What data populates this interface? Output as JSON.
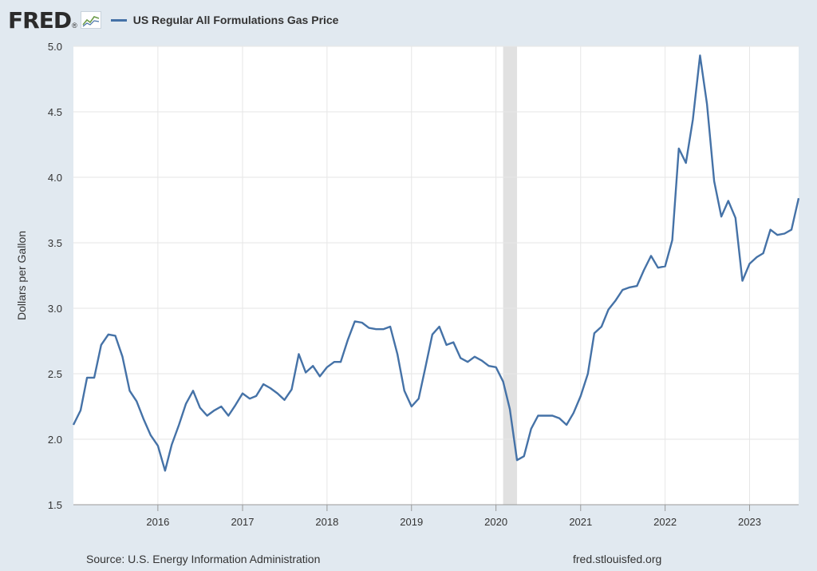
{
  "header": {
    "logo_text": "FRED",
    "logo_reg": "®",
    "legend_label": "US Regular All Formulations Gas Price"
  },
  "footer": {
    "source": "Source: U.S. Energy Information Administration",
    "site": "fred.stlouisfed.org"
  },
  "colors": {
    "line": "#4572a7",
    "recession": "#e1e1e1",
    "background": "#e1e9f0"
  },
  "chart_data": {
    "type": "line",
    "title": "",
    "xlabel": "",
    "ylabel": "Dollars per Gallon",
    "ylim": [
      1.5,
      5.0
    ],
    "xlim": [
      "2015-01-01",
      "2023-08-01"
    ],
    "grid": true,
    "legend": "top-left",
    "yticks": [
      1.5,
      2.0,
      2.5,
      3.0,
      3.5,
      4.0,
      4.5,
      5.0
    ],
    "ytick_labels": [
      "1.5",
      "2.0",
      "2.5",
      "3.0",
      "3.5",
      "4.0",
      "4.5",
      "5.0"
    ],
    "xticks": [
      "2016-01-01",
      "2017-01-01",
      "2018-01-01",
      "2019-01-01",
      "2020-01-01",
      "2021-01-01",
      "2022-01-01",
      "2023-01-01"
    ],
    "xtick_labels": [
      "2016",
      "2017",
      "2018",
      "2019",
      "2020",
      "2021",
      "2022",
      "2023"
    ],
    "shaded_periods": [
      {
        "start": "2020-02-01",
        "end": "2020-04-01",
        "label": "recession"
      }
    ],
    "series": [
      {
        "name": "US Regular All Formulations Gas Price",
        "x": [
          "2015-01-01",
          "2015-02-01",
          "2015-03-01",
          "2015-04-01",
          "2015-05-01",
          "2015-06-01",
          "2015-07-01",
          "2015-08-01",
          "2015-09-01",
          "2015-10-01",
          "2015-11-01",
          "2015-12-01",
          "2016-01-01",
          "2016-02-01",
          "2016-03-01",
          "2016-04-01",
          "2016-05-01",
          "2016-06-01",
          "2016-07-01",
          "2016-08-01",
          "2016-09-01",
          "2016-10-01",
          "2016-11-01",
          "2016-12-01",
          "2017-01-01",
          "2017-02-01",
          "2017-03-01",
          "2017-04-01",
          "2017-05-01",
          "2017-06-01",
          "2017-07-01",
          "2017-08-01",
          "2017-09-01",
          "2017-10-01",
          "2017-11-01",
          "2017-12-01",
          "2018-01-01",
          "2018-02-01",
          "2018-03-01",
          "2018-04-01",
          "2018-05-01",
          "2018-06-01",
          "2018-07-01",
          "2018-08-01",
          "2018-09-01",
          "2018-10-01",
          "2018-11-01",
          "2018-12-01",
          "2019-01-01",
          "2019-02-01",
          "2019-03-01",
          "2019-04-01",
          "2019-05-01",
          "2019-06-01",
          "2019-07-01",
          "2019-08-01",
          "2019-09-01",
          "2019-10-01",
          "2019-11-01",
          "2019-12-01",
          "2020-01-01",
          "2020-02-01",
          "2020-03-01",
          "2020-04-01",
          "2020-05-01",
          "2020-06-01",
          "2020-07-01",
          "2020-08-01",
          "2020-09-01",
          "2020-10-01",
          "2020-11-01",
          "2020-12-01",
          "2021-01-01",
          "2021-02-01",
          "2021-03-01",
          "2021-04-01",
          "2021-05-01",
          "2021-06-01",
          "2021-07-01",
          "2021-08-01",
          "2021-09-01",
          "2021-10-01",
          "2021-11-01",
          "2021-12-01",
          "2022-01-01",
          "2022-02-01",
          "2022-03-01",
          "2022-04-01",
          "2022-05-01",
          "2022-06-01",
          "2022-07-01",
          "2022-08-01",
          "2022-09-01",
          "2022-10-01",
          "2022-11-01",
          "2022-12-01",
          "2023-01-01",
          "2023-02-01",
          "2023-03-01",
          "2023-04-01",
          "2023-05-01",
          "2023-06-01",
          "2023-07-01",
          "2023-08-01"
        ],
        "values": [
          2.11,
          2.22,
          2.47,
          2.47,
          2.72,
          2.8,
          2.79,
          2.63,
          2.37,
          2.29,
          2.15,
          2.03,
          1.95,
          1.76,
          1.96,
          2.11,
          2.27,
          2.37,
          2.24,
          2.18,
          2.22,
          2.25,
          2.18,
          2.26,
          2.35,
          2.31,
          2.33,
          2.42,
          2.39,
          2.35,
          2.3,
          2.38,
          2.65,
          2.51,
          2.56,
          2.48,
          2.55,
          2.59,
          2.59,
          2.76,
          2.9,
          2.89,
          2.85,
          2.84,
          2.84,
          2.86,
          2.65,
          2.37,
          2.25,
          2.31,
          2.54,
          2.8,
          2.86,
          2.72,
          2.74,
          2.62,
          2.59,
          2.63,
          2.6,
          2.56,
          2.55,
          2.44,
          2.23,
          1.84,
          1.87,
          2.08,
          2.18,
          2.18,
          2.18,
          2.16,
          2.11,
          2.2,
          2.33,
          2.5,
          2.81,
          2.86,
          2.99,
          3.06,
          3.14,
          3.16,
          3.17,
          3.29,
          3.4,
          3.31,
          3.32,
          3.52,
          4.22,
          4.11,
          4.44,
          4.93,
          4.56,
          3.97,
          3.7,
          3.82,
          3.69,
          3.21,
          3.34,
          3.39,
          3.42,
          3.6,
          3.56,
          3.57,
          3.6,
          3.84
        ]
      }
    ]
  }
}
